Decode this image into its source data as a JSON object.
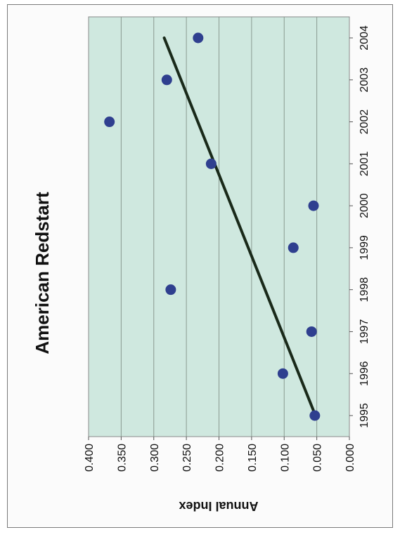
{
  "chart_data": {
    "type": "scatter",
    "orientation": "rotated-90-clockwise",
    "title": "American Redstart",
    "xlabel": "",
    "ylabel": "Annual Index",
    "x": [
      1995,
      1996,
      1997,
      1998,
      1999,
      2000,
      2001,
      2002,
      2003,
      2004
    ],
    "x_ticks": [
      "1995",
      "1996",
      "1997",
      "1998",
      "1999",
      "2000",
      "2001",
      "2002",
      "2003",
      "2004"
    ],
    "y": [
      0.053,
      0.102,
      0.058,
      0.274,
      0.086,
      0.055,
      0.212,
      0.368,
      0.28,
      0.232
    ],
    "y_ticks": [
      "0.000",
      "0.050",
      "0.100",
      "0.150",
      "0.200",
      "0.250",
      "0.300",
      "0.350",
      "0.400"
    ],
    "ylim": [
      0,
      0.4
    ],
    "trendline": {
      "x": [
        1995,
        2004
      ],
      "y": [
        0.052,
        0.284
      ]
    },
    "grid": true,
    "legend": "none",
    "colors": {
      "plot_bg": "#cfe8df",
      "point": "#2f3f8f",
      "trendline": "#1a2a1a",
      "gridline": "#8a9a90"
    }
  }
}
